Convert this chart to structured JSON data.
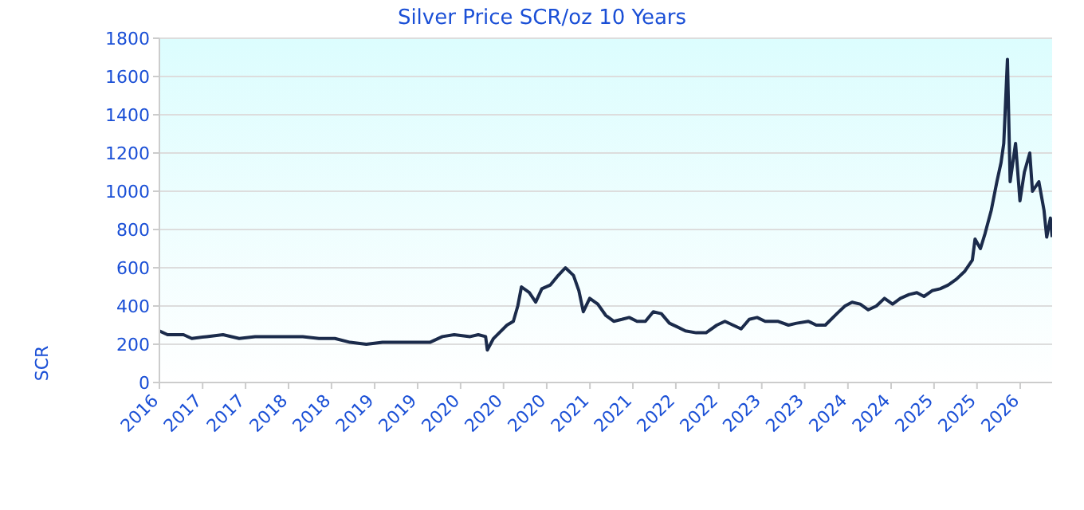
{
  "chart_data": {
    "type": "line",
    "title": "Silver Price SCR/oz 10 Years",
    "ylabel": "SCR",
    "x": [
      "2016-08-29",
      "2016-10-01",
      "2016-12-05",
      "2017-01-08",
      "2017-03-10",
      "2017-05-15",
      "2017-07-20",
      "2017-09-23",
      "2017-11-25",
      "2018-01-30",
      "2018-04-05",
      "2018-06-10",
      "2018-08-14",
      "2018-10-15",
      "2018-12-20",
      "2019-02-24",
      "2019-04-30",
      "2019-07-02",
      "2019-09-05",
      "2019-10-26",
      "2019-12-13",
      "2020-02-16",
      "2020-03-20",
      "2020-04-19",
      "2020-04-26",
      "2020-05-21",
      "2020-07-15",
      "2020-08-10",
      "2020-08-28",
      "2020-09-12",
      "2020-10-14",
      "2020-11-09",
      "2020-12-04",
      "2021-01-08",
      "2021-02-09",
      "2021-03-10",
      "2021-04-12",
      "2021-05-04",
      "2021-05-22",
      "2021-06-17",
      "2021-07-20",
      "2021-08-22",
      "2021-09-23",
      "2021-10-26",
      "2021-11-25",
      "2021-12-27",
      "2022-01-30",
      "2022-03-03",
      "2022-04-05",
      "2022-05-08",
      "2022-06-10",
      "2022-07-12",
      "2022-08-25",
      "2022-10-04",
      "2022-11-17",
      "2022-12-20",
      "2023-01-22",
      "2023-02-24",
      "2023-03-29",
      "2023-04-30",
      "2023-06-02",
      "2023-07-23",
      "2023-09-05",
      "2023-10-08",
      "2023-11-25",
      "2023-12-27",
      "2024-02-02",
      "2024-03-20",
      "2024-04-22",
      "2024-05-21",
      "2024-06-23",
      "2024-07-26",
      "2024-08-28",
      "2024-09-30",
      "2024-11-02",
      "2024-12-04",
      "2025-01-08",
      "2025-02-09",
      "2025-03-10",
      "2025-04-12",
      "2025-05-15",
      "2025-06-17",
      "2025-07-20",
      "2025-08-22",
      "2025-09-23",
      "2025-10-04",
      "2025-10-26",
      "2025-11-14",
      "2025-12-09",
      "2026-01-01",
      "2026-01-18",
      "2026-01-29",
      "2026-02-13",
      "2026-02-24",
      "2026-03-18",
      "2026-04-05",
      "2026-04-23",
      "2026-05-15",
      "2026-05-26",
      "2026-06-21",
      "2026-07-12",
      "2026-07-23",
      "2026-08-07",
      "2026-08-14"
    ],
    "series": [
      {
        "color": "#1b2b4b",
        "values": [
          270,
          250,
          250,
          230,
          240,
          250,
          230,
          240,
          240,
          240,
          240,
          230,
          230,
          210,
          200,
          210,
          210,
          210,
          210,
          240,
          250,
          240,
          250,
          240,
          170,
          230,
          300,
          320,
          400,
          500,
          470,
          420,
          490,
          510,
          560,
          600,
          560,
          480,
          370,
          440,
          410,
          350,
          320,
          330,
          340,
          320,
          320,
          370,
          360,
          310,
          290,
          270,
          260,
          260,
          300,
          320,
          300,
          280,
          330,
          340,
          320,
          320,
          300,
          310,
          320,
          300,
          300,
          360,
          400,
          420,
          410,
          380,
          400,
          440,
          410,
          440,
          460,
          470,
          450,
          480,
          490,
          510,
          540,
          580,
          640,
          750,
          700,
          780,
          900,
          1050,
          1150,
          1250,
          1690,
          1050,
          1250,
          950,
          1100,
          1200,
          1000,
          1050,
          900,
          760,
          860,
          760
        ]
      }
    ],
    "xlim": [
      "2016-08-29",
      "2026-08-14"
    ],
    "xticks": [
      {
        "value": "2016-08-29",
        "label": "2016"
      },
      {
        "value": "2017-02-21",
        "label": "2017"
      },
      {
        "value": "2017-08-15",
        "label": "2017"
      },
      {
        "value": "2018-02-06",
        "label": "2018"
      },
      {
        "value": "2018-07-31",
        "label": "2018"
      },
      {
        "value": "2019-01-23",
        "label": "2019"
      },
      {
        "value": "2019-07-17",
        "label": "2019"
      },
      {
        "value": "2020-01-08",
        "label": "2020"
      },
      {
        "value": "2020-07-01",
        "label": "2020"
      },
      {
        "value": "2020-12-24",
        "label": "2020"
      },
      {
        "value": "2021-06-18",
        "label": "2021"
      },
      {
        "value": "2021-12-10",
        "label": "2021"
      },
      {
        "value": "2022-06-03",
        "label": "2022"
      },
      {
        "value": "2022-11-25",
        "label": "2022"
      },
      {
        "value": "2023-05-19",
        "label": "2023"
      },
      {
        "value": "2023-11-10",
        "label": "2023"
      },
      {
        "value": "2024-05-04",
        "label": "2024"
      },
      {
        "value": "2024-10-27",
        "label": "2024"
      },
      {
        "value": "2025-04-20",
        "label": "2025"
      },
      {
        "value": "2025-10-12",
        "label": "2025"
      },
      {
        "value": "2026-04-06",
        "label": "2026"
      }
    ],
    "ylim": [
      0,
      1800
    ],
    "yticks": [
      0,
      200,
      400,
      600,
      800,
      1000,
      1200,
      1400,
      1600,
      1800
    ],
    "grid": "y",
    "marker": "none",
    "line_style": "solid"
  }
}
